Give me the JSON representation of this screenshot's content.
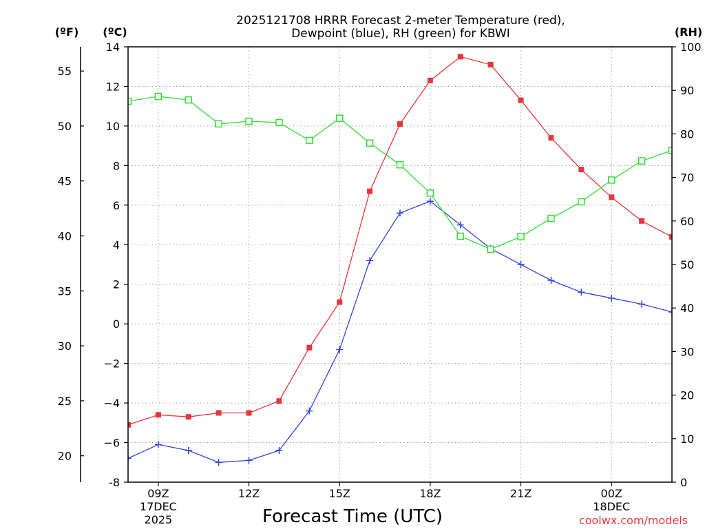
{
  "chart_data": {
    "type": "line",
    "title_line1": "2025121708 HRRR Forecast 2-meter Temperature (red),",
    "title_line2": "Dewpoint (blue), RH (green) for KBWI",
    "xlabel": "Forecast Time (UTC)",
    "credit": "coolwx.com/models",
    "units": {
      "fahrenheit": "(ºF)",
      "celsius": "(ºC)",
      "rh": "(RH)"
    },
    "x_hours": [
      8,
      9,
      10,
      11,
      12,
      13,
      14,
      15,
      16,
      17,
      18,
      19,
      20,
      21,
      22,
      23,
      24,
      25,
      26
    ],
    "x_ticks": [
      {
        "hour": 9,
        "label": "09Z",
        "sub1": "17DEC",
        "sub2": "2025"
      },
      {
        "hour": 12,
        "label": "12Z",
        "sub1": "",
        "sub2": ""
      },
      {
        "hour": 15,
        "label": "15Z",
        "sub1": "",
        "sub2": ""
      },
      {
        "hour": 18,
        "label": "18Z",
        "sub1": "",
        "sub2": ""
      },
      {
        "hour": 21,
        "label": "21Z",
        "sub1": "",
        "sub2": ""
      },
      {
        "hour": 24,
        "label": "00Z",
        "sub1": "18DEC",
        "sub2": ""
      }
    ],
    "xlim": [
      8,
      26
    ],
    "ylim_celsius": [
      -8,
      14
    ],
    "y_ticks_celsius": [
      "-8",
      "−6",
      "−4",
      "−2",
      "0",
      "2",
      "4",
      "6",
      "8",
      "10",
      "12",
      "14"
    ],
    "y_ticks_fahrenheit": [
      "20",
      "25",
      "30",
      "35",
      "40",
      "45",
      "50",
      "55"
    ],
    "y_ticks_rh": [
      "0",
      "10",
      "20",
      "30",
      "40",
      "50",
      "60",
      "70",
      "80",
      "90",
      "100"
    ],
    "ylim_rh": [
      0,
      100
    ],
    "series": [
      {
        "name": "Temperature",
        "color": "#e8353b",
        "marker": "filled-square",
        "values": [
          -5.1,
          -4.6,
          -4.7,
          -4.5,
          -4.5,
          -3.9,
          -1.2,
          1.1,
          6.7,
          10.1,
          12.3,
          13.5,
          13.1,
          11.3,
          9.4,
          7.8,
          6.4,
          5.2,
          4.4
        ]
      },
      {
        "name": "Dewpoint",
        "color": "#3344dd",
        "marker": "plus",
        "values": [
          -6.8,
          -6.1,
          -6.4,
          -7.0,
          -6.9,
          -6.4,
          -4.4,
          -1.3,
          3.2,
          5.6,
          6.2,
          5.0,
          3.8,
          3.0,
          2.2,
          1.6,
          1.3,
          1.0,
          0.6
        ]
      },
      {
        "name": "RH",
        "color": "#33dd33",
        "marker": "open-square",
        "values": [
          87.5,
          88.6,
          87.8,
          82.3,
          82.9,
          82.6,
          78.5,
          83.6,
          77.9,
          72.9,
          66.4,
          56.5,
          53.5,
          56.4,
          60.6,
          64.4,
          69.4,
          73.8,
          76.2
        ]
      }
    ]
  }
}
